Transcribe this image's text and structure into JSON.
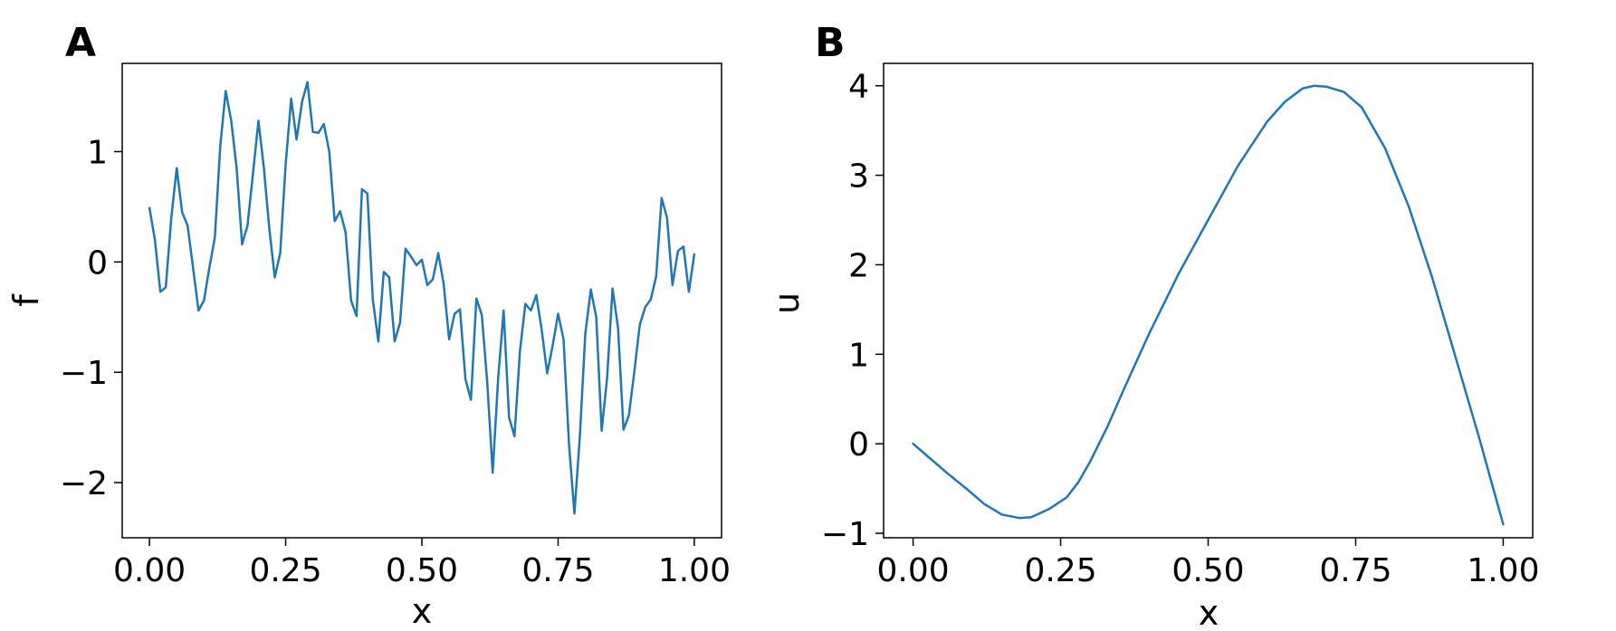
{
  "chart_data": [
    {
      "type": "line",
      "panel_label": "A",
      "xlabel": "x",
      "ylabel": "f",
      "xlim": [
        -0.05,
        1.05
      ],
      "ylim": [
        -2.5,
        1.8
      ],
      "xticks": [
        0,
        0.25,
        0.5,
        0.75,
        1
      ],
      "xtick_labels": [
        "0.00",
        "0.25",
        "0.50",
        "0.75",
        "1.00"
      ],
      "yticks": [
        -2,
        -1,
        0,
        1
      ],
      "ytick_labels": [
        "−2",
        "−1",
        "0",
        "1"
      ],
      "grid": false,
      "series": [
        {
          "color": "#1f77b4",
          "x": [
            0,
            0.01,
            0.02,
            0.03,
            0.04,
            0.05,
            0.06,
            0.07,
            0.08,
            0.09,
            0.1,
            0.11,
            0.12,
            0.13,
            0.14,
            0.15,
            0.16,
            0.17,
            0.18,
            0.19,
            0.2,
            0.21,
            0.22,
            0.23,
            0.24,
            0.25,
            0.26,
            0.27,
            0.28,
            0.29,
            0.3,
            0.31,
            0.32,
            0.33,
            0.34,
            0.35,
            0.36,
            0.37,
            0.38,
            0.39,
            0.4,
            0.41,
            0.42,
            0.43,
            0.44,
            0.45,
            0.46,
            0.47,
            0.48,
            0.49,
            0.5,
            0.51,
            0.52,
            0.53,
            0.54,
            0.55,
            0.56,
            0.57,
            0.58,
            0.59,
            0.6,
            0.61,
            0.62,
            0.63,
            0.64,
            0.65,
            0.66,
            0.67,
            0.68,
            0.69,
            0.7,
            0.71,
            0.72,
            0.73,
            0.74,
            0.75,
            0.76,
            0.77,
            0.78,
            0.79,
            0.8,
            0.81,
            0.82,
            0.83,
            0.84,
            0.85,
            0.86,
            0.87,
            0.88,
            0.89,
            0.9,
            0.91,
            0.92,
            0.93,
            0.94,
            0.95,
            0.96,
            0.97,
            0.98,
            0.99,
            1.0
          ],
          "y": [
            0.49,
            0.2,
            -0.27,
            -0.23,
            0.4,
            0.85,
            0.45,
            0.33,
            -0.05,
            -0.44,
            -0.35,
            -0.05,
            0.22,
            1.05,
            1.55,
            1.28,
            0.85,
            0.16,
            0.33,
            0.8,
            1.28,
            0.85,
            0.3,
            -0.14,
            0.08,
            0.88,
            1.48,
            1.11,
            1.45,
            1.63,
            1.18,
            1.17,
            1.25,
            1.0,
            0.37,
            0.46,
            0.27,
            -0.35,
            -0.49,
            0.66,
            0.62,
            -0.34,
            -0.72,
            -0.09,
            -0.14,
            -0.72,
            -0.55,
            0.12,
            0.05,
            -0.03,
            0.02,
            -0.21,
            -0.16,
            0.08,
            -0.2,
            -0.7,
            -0.47,
            -0.43,
            -1.06,
            -1.25,
            -0.33,
            -0.48,
            -1.09,
            -1.91,
            -1.05,
            -0.44,
            -1.41,
            -1.58,
            -0.81,
            -0.38,
            -0.44,
            -0.3,
            -0.62,
            -1.01,
            -0.76,
            -0.47,
            -0.7,
            -1.65,
            -2.28,
            -1.58,
            -0.65,
            -0.25,
            -0.5,
            -1.53,
            -1.05,
            -0.24,
            -0.6,
            -1.52,
            -1.39,
            -0.99,
            -0.57,
            -0.41,
            -0.34,
            -0.13,
            0.58,
            0.4,
            -0.21,
            0.1,
            0.14,
            -0.27,
            0.07
          ]
        }
      ]
    },
    {
      "type": "line",
      "panel_label": "B",
      "xlabel": "x",
      "ylabel": "u",
      "xlim": [
        -0.05,
        1.05
      ],
      "ylim": [
        -1.05,
        4.25
      ],
      "xticks": [
        0,
        0.25,
        0.5,
        0.75,
        1
      ],
      "xtick_labels": [
        "0.00",
        "0.25",
        "0.50",
        "0.75",
        "1.00"
      ],
      "yticks": [
        -1,
        0,
        1,
        2,
        3,
        4
      ],
      "ytick_labels": [
        "−1",
        "0",
        "1",
        "2",
        "3",
        "4"
      ],
      "grid": false,
      "series": [
        {
          "color": "#1f77b4",
          "x": [
            0,
            0.03,
            0.06,
            0.09,
            0.12,
            0.15,
            0.18,
            0.2,
            0.23,
            0.26,
            0.28,
            0.3,
            0.33,
            0.36,
            0.4,
            0.45,
            0.5,
            0.55,
            0.6,
            0.63,
            0.66,
            0.68,
            0.7,
            0.73,
            0.76,
            0.8,
            0.84,
            0.88,
            0.92,
            0.96,
            1.0
          ],
          "y": [
            0.0,
            -0.17,
            -0.34,
            -0.5,
            -0.67,
            -0.79,
            -0.83,
            -0.82,
            -0.73,
            -0.6,
            -0.43,
            -0.2,
            0.2,
            0.65,
            1.23,
            1.9,
            2.5,
            3.1,
            3.6,
            3.82,
            3.97,
            4.0,
            3.99,
            3.93,
            3.76,
            3.3,
            2.65,
            1.85,
            0.95,
            0.05,
            -0.9
          ]
        }
      ]
    }
  ]
}
